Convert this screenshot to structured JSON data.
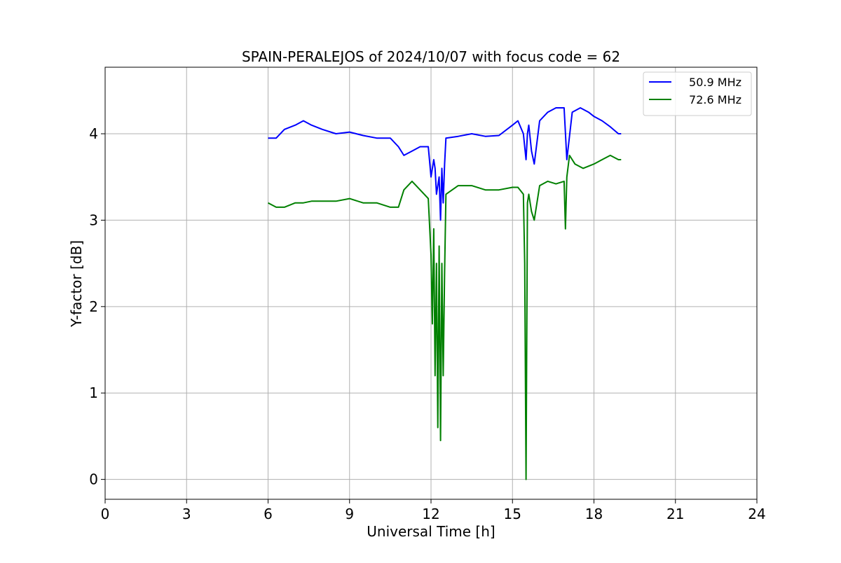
{
  "chart_data": {
    "type": "line",
    "title": "SPAIN-PERALEJOS of 2024/10/07 with focus code = 62",
    "xlabel": "Universal Time [h]",
    "ylabel": "Y-factor [dB]",
    "xlim": [
      0,
      24
    ],
    "ylim": [
      -0.23,
      4.77
    ],
    "x_ticks": [
      0,
      3,
      6,
      9,
      12,
      15,
      18,
      21,
      24
    ],
    "x_tick_labels": [
      "0",
      "3",
      "6",
      "9",
      "12",
      "15",
      "18",
      "21",
      "24"
    ],
    "y_ticks": [
      0,
      1,
      2,
      3,
      4
    ],
    "y_tick_labels": [
      "0",
      "1",
      "2",
      "3",
      "4"
    ],
    "grid": true,
    "legend_position": "upper-right",
    "series": [
      {
        "name": "50.9 MHz",
        "color": "#0000ff",
        "x": [
          6.0,
          6.3,
          6.6,
          7.0,
          7.3,
          7.6,
          8.0,
          8.5,
          9.0,
          9.5,
          10.0,
          10.5,
          10.8,
          11.0,
          11.3,
          11.6,
          11.9,
          12.0,
          12.1,
          12.15,
          12.2,
          12.3,
          12.35,
          12.4,
          12.45,
          12.5,
          12.55,
          13.0,
          13.5,
          14.0,
          14.5,
          15.0,
          15.2,
          15.4,
          15.5,
          15.55,
          15.6,
          15.7,
          15.8,
          16.0,
          16.3,
          16.6,
          16.9,
          17.0,
          17.2,
          17.5,
          17.8,
          18.0,
          18.3,
          18.6,
          18.9,
          19.0
        ],
        "y": [
          3.95,
          3.95,
          4.05,
          4.1,
          4.15,
          4.1,
          4.05,
          4.0,
          4.02,
          3.98,
          3.95,
          3.95,
          3.85,
          3.75,
          3.8,
          3.85,
          3.85,
          3.5,
          3.7,
          3.6,
          3.3,
          3.5,
          3.0,
          3.6,
          3.2,
          3.65,
          3.95,
          3.97,
          4.0,
          3.97,
          3.98,
          4.1,
          4.15,
          4.0,
          3.7,
          4.0,
          4.1,
          3.8,
          3.65,
          4.15,
          4.25,
          4.3,
          4.3,
          3.7,
          4.25,
          4.3,
          4.25,
          4.2,
          4.15,
          4.08,
          4.0,
          4.0
        ]
      },
      {
        "name": "72.6 MHz",
        "color": "#008000",
        "x": [
          6.0,
          6.3,
          6.6,
          7.0,
          7.3,
          7.6,
          8.0,
          8.5,
          9.0,
          9.5,
          10.0,
          10.5,
          10.8,
          11.0,
          11.3,
          11.6,
          11.9,
          12.0,
          12.05,
          12.1,
          12.15,
          12.2,
          12.25,
          12.3,
          12.35,
          12.4,
          12.45,
          12.5,
          12.55,
          13.0,
          13.5,
          14.0,
          14.5,
          15.0,
          15.2,
          15.4,
          15.45,
          15.5,
          15.55,
          15.6,
          15.7,
          15.8,
          16.0,
          16.3,
          16.6,
          16.9,
          16.95,
          17.0,
          17.1,
          17.3,
          17.6,
          18.0,
          18.3,
          18.6,
          18.9,
          19.0
        ],
        "y": [
          3.2,
          3.15,
          3.15,
          3.2,
          3.2,
          3.22,
          3.22,
          3.22,
          3.25,
          3.2,
          3.2,
          3.15,
          3.15,
          3.35,
          3.45,
          3.35,
          3.25,
          2.6,
          1.8,
          2.9,
          1.2,
          2.5,
          0.6,
          2.7,
          0.45,
          2.5,
          1.2,
          2.4,
          3.3,
          3.4,
          3.4,
          3.35,
          3.35,
          3.38,
          3.38,
          3.3,
          2.5,
          0.0,
          3.2,
          3.3,
          3.1,
          3.0,
          3.4,
          3.45,
          3.42,
          3.45,
          2.9,
          3.5,
          3.75,
          3.65,
          3.6,
          3.65,
          3.7,
          3.75,
          3.7,
          3.7
        ]
      }
    ]
  }
}
